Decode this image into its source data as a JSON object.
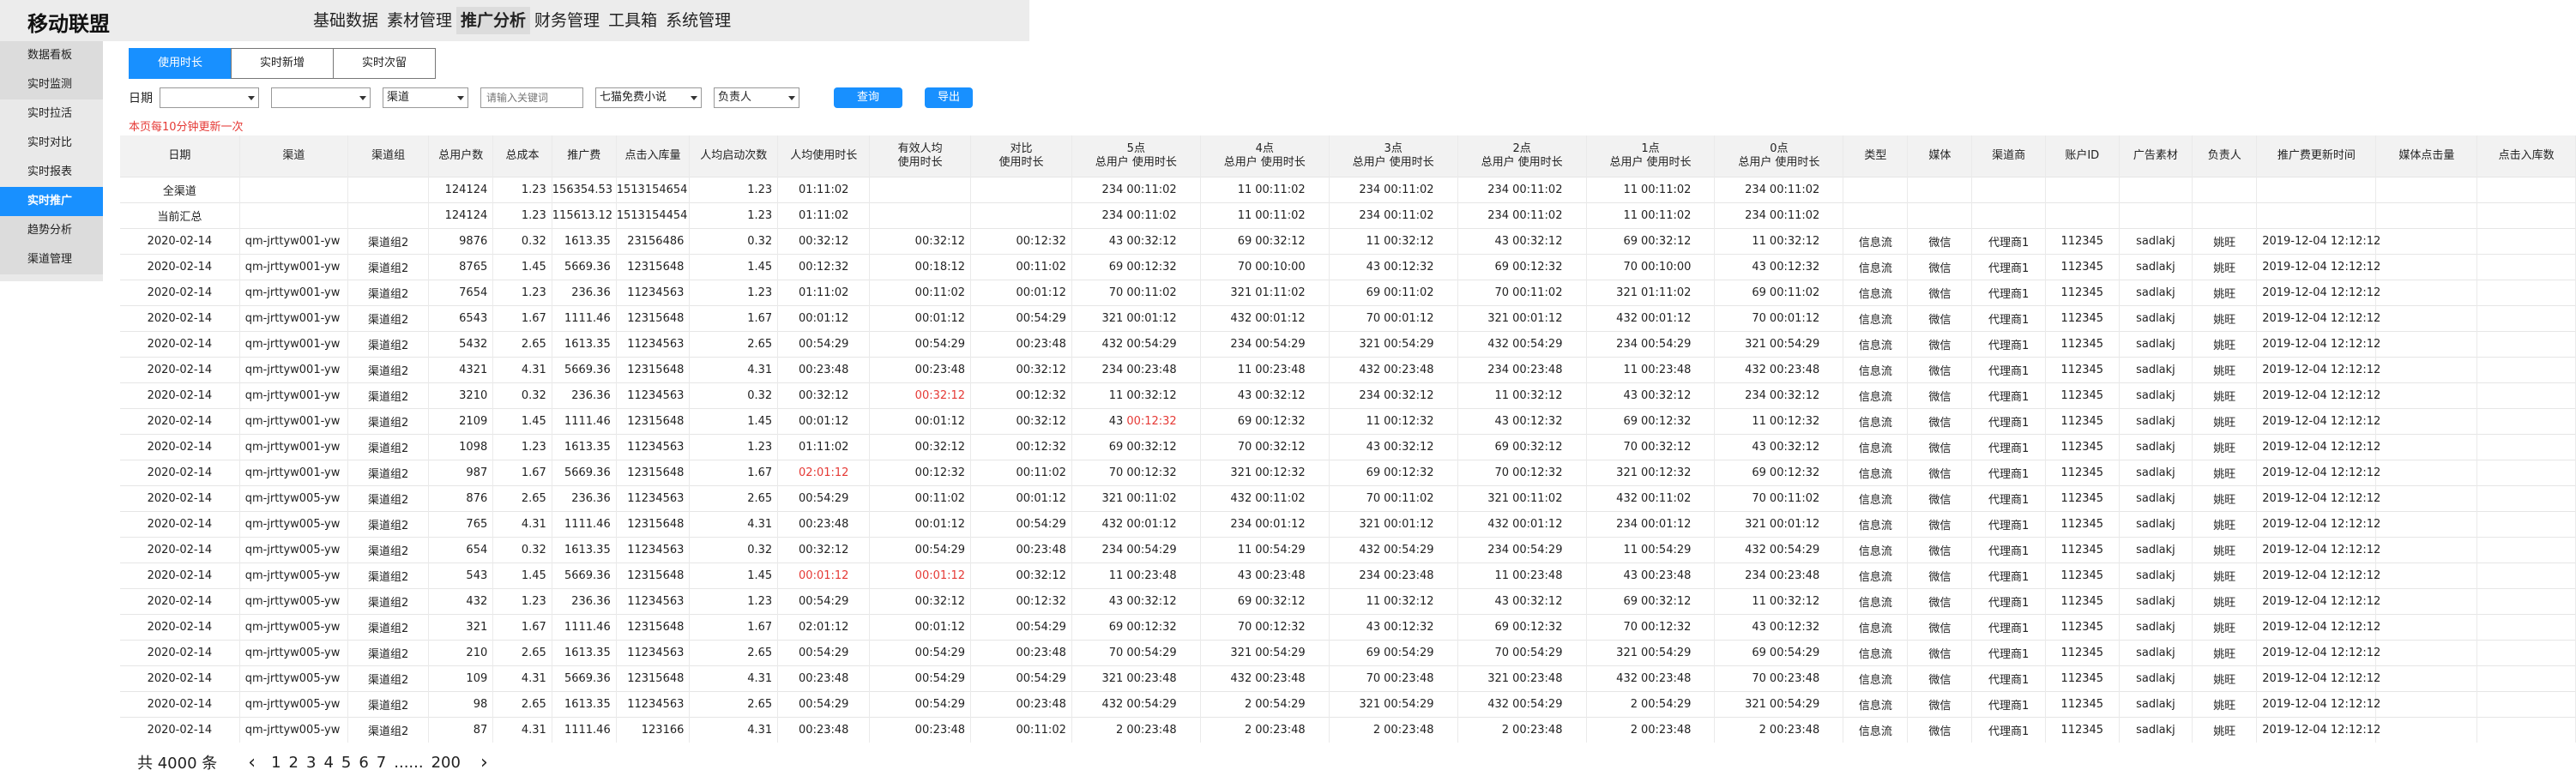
{
  "app": {
    "brand": "移动联盟",
    "nav": [
      "基础数据",
      "素材管理",
      "推广分析",
      "财务管理",
      "工具箱",
      "系统管理"
    ],
    "nav_active": 2
  },
  "sidebar": {
    "items": [
      "数据看板",
      "实时监测",
      "实时拉活",
      "实时对比",
      "实时报表",
      "实时推广",
      "趋势分析",
      "渠道管理"
    ],
    "active": 5
  },
  "tabs": [
    "使用时长",
    "实时新增",
    "实时次留"
  ],
  "tab_active": 0,
  "filters": {
    "date_label": "日期",
    "select1": "",
    "select2": "",
    "channel": "渠道",
    "keyword_placeholder": "请输入关键词",
    "app": "七猫免费小说",
    "owner": "负责人",
    "query": "查询",
    "export": "导出"
  },
  "notice": "本页每10分钟更新一次",
  "table": {
    "headers": [
      "日期",
      "渠道",
      "渠道组",
      "总用户数",
      "总成本",
      "推广费",
      "点击入库量",
      "人均启动次数",
      "人均使用时长",
      "有效人均\n使用时长",
      "对比\n使用时长",
      "5点",
      "4点",
      "3点",
      "2点",
      "1点",
      "0点",
      "类型",
      "媒体",
      "渠道商",
      "账户ID",
      "广告素材",
      "负责人",
      "推广费更新时间",
      "媒体点击量",
      "点击入库数"
    ],
    "hour_sub": [
      "总用户",
      "使用时长"
    ],
    "summary_rows": [
      [
        "全渠道",
        "",
        "",
        "124124",
        "1.23",
        "156354.53",
        "1513154654",
        "1.23",
        "01:11:02",
        "",
        "",
        [
          "234",
          "00:11:02"
        ],
        [
          "11",
          "00:11:02"
        ],
        [
          "234",
          "00:11:02"
        ],
        [
          "234",
          "00:11:02"
        ],
        [
          "11",
          "00:11:02"
        ],
        [
          "234",
          "00:11:02"
        ],
        "",
        "",
        "",
        "",
        "",
        "",
        "",
        "",
        ""
      ],
      [
        "当前汇总",
        "",
        "",
        "124124",
        "1.23",
        "115613.12",
        "1513154454",
        "1.23",
        "01:11:02",
        "",
        "",
        [
          "234",
          "00:11:02"
        ],
        [
          "11",
          "00:11:02"
        ],
        [
          "234",
          "00:11:02"
        ],
        [
          "234",
          "00:11:02"
        ],
        [
          "11",
          "00:11:02"
        ],
        [
          "234",
          "00:11:02"
        ],
        "",
        "",
        "",
        "",
        "",
        "",
        "",
        "",
        ""
      ]
    ],
    "rows": [
      [
        "2020-02-14",
        "qm-jrttyw001-yw",
        "渠道组2",
        "9876",
        "0.32",
        "1613.35",
        "23156486",
        "0.32",
        "00:32:12",
        "00:32:12",
        "00:12:32",
        [
          "43",
          "00:32:12"
        ],
        [
          "69",
          "00:32:12"
        ],
        [
          "11",
          "00:32:12"
        ],
        [
          "43",
          "00:32:12"
        ],
        [
          "69",
          "00:32:12"
        ],
        [
          "11",
          "00:32:12"
        ],
        "信息流",
        "微信",
        "代理商1",
        "112345",
        "sadlakj",
        "姚旺",
        "2019-12-04 12:12:12",
        "",
        ""
      ],
      [
        "2020-02-14",
        "qm-jrttyw001-yw",
        "渠道组2",
        "8765",
        "1.45",
        "5669.36",
        "12315648",
        "1.45",
        "00:12:32",
        "00:18:12",
        "00:11:02",
        [
          "69",
          "00:12:32"
        ],
        [
          "70",
          "00:10:00"
        ],
        [
          "43",
          "00:12:32"
        ],
        [
          "69",
          "00:12:32"
        ],
        [
          "70",
          "00:10:00"
        ],
        [
          "43",
          "00:12:32"
        ],
        "信息流",
        "微信",
        "代理商1",
        "112345",
        "sadlakj",
        "姚旺",
        "2019-12-04 12:12:12",
        "",
        ""
      ],
      [
        "2020-02-14",
        "qm-jrttyw001-yw",
        "渠道组2",
        "7654",
        "1.23",
        "236.36",
        "11234563",
        "1.23",
        "01:11:02",
        "00:11:02",
        "00:01:12",
        [
          "70",
          "00:11:02"
        ],
        [
          "321",
          "01:11:02"
        ],
        [
          "69",
          "00:11:02"
        ],
        [
          "70",
          "00:11:02"
        ],
        [
          "321",
          "01:11:02"
        ],
        [
          "69",
          "00:11:02"
        ],
        "信息流",
        "微信",
        "代理商1",
        "112345",
        "sadlakj",
        "姚旺",
        "2019-12-04 12:12:12",
        "",
        ""
      ],
      [
        "2020-02-14",
        "qm-jrttyw001-yw",
        "渠道组2",
        "6543",
        "1.67",
        "1111.46",
        "12315648",
        "1.67",
        "00:01:12",
        "00:01:12",
        "00:54:29",
        [
          "321",
          "00:01:12"
        ],
        [
          "432",
          "00:01:12"
        ],
        [
          "70",
          "00:01:12"
        ],
        [
          "321",
          "00:01:12"
        ],
        [
          "432",
          "00:01:12"
        ],
        [
          "70",
          "00:01:12"
        ],
        "信息流",
        "微信",
        "代理商1",
        "112345",
        "sadlakj",
        "姚旺",
        "2019-12-04 12:12:12",
        "",
        ""
      ],
      [
        "2020-02-14",
        "qm-jrttyw001-yw",
        "渠道组2",
        "5432",
        "2.65",
        "1613.35",
        "11234563",
        "2.65",
        "00:54:29",
        "00:54:29",
        "00:23:48",
        [
          "432",
          "00:54:29"
        ],
        [
          "234",
          "00:54:29"
        ],
        [
          "321",
          "00:54:29"
        ],
        [
          "432",
          "00:54:29"
        ],
        [
          "234",
          "00:54:29"
        ],
        [
          "321",
          "00:54:29"
        ],
        "信息流",
        "微信",
        "代理商1",
        "112345",
        "sadlakj",
        "姚旺",
        "2019-12-04 12:12:12",
        "",
        ""
      ],
      [
        "2020-02-14",
        "qm-jrttyw001-yw",
        "渠道组2",
        "4321",
        "4.31",
        "5669.36",
        "12315648",
        "4.31",
        "00:23:48",
        "00:23:48",
        "00:32:12",
        [
          "234",
          "00:23:48"
        ],
        [
          "11",
          "00:23:48"
        ],
        [
          "432",
          "00:23:48"
        ],
        [
          "234",
          "00:23:48"
        ],
        [
          "11",
          "00:23:48"
        ],
        [
          "432",
          "00:23:48"
        ],
        "信息流",
        "微信",
        "代理商1",
        "112345",
        "sadlakj",
        "姚旺",
        "2019-12-04 12:12:12",
        "",
        ""
      ],
      [
        "2020-02-14",
        "qm-jrttyw001-yw",
        "渠道组2",
        "3210",
        "0.32",
        "236.36",
        "11234563",
        "0.32",
        "00:32:12",
        "00:32:12",
        "00:12:32",
        [
          "11",
          "00:32:12"
        ],
        [
          "43",
          "00:32:12"
        ],
        [
          "234",
          "00:32:12"
        ],
        [
          "11",
          "00:32:12"
        ],
        [
          "43",
          "00:32:12"
        ],
        [
          "234",
          "00:32:12"
        ],
        "信息流",
        "微信",
        "代理商1",
        "112345",
        "sadlakj",
        "姚旺",
        "2019-12-04 12:12:12",
        "",
        ""
      ],
      [
        "2020-02-14",
        "qm-jrttyw001-yw",
        "渠道组2",
        "2109",
        "1.45",
        "1111.46",
        "12315648",
        "1.45",
        "00:01:12",
        "00:01:12",
        "00:32:12",
        [
          "43",
          "00:12:32"
        ],
        [
          "69",
          "00:12:32"
        ],
        [
          "11",
          "00:12:32"
        ],
        [
          "43",
          "00:12:32"
        ],
        [
          "69",
          "00:12:32"
        ],
        [
          "11",
          "00:12:32"
        ],
        "信息流",
        "微信",
        "代理商1",
        "112345",
        "sadlakj",
        "姚旺",
        "2019-12-04 12:12:12",
        "",
        ""
      ],
      [
        "2020-02-14",
        "qm-jrttyw001-yw",
        "渠道组2",
        "1098",
        "1.23",
        "1613.35",
        "11234563",
        "1.23",
        "01:11:02",
        "00:32:12",
        "00:12:32",
        [
          "69",
          "00:32:12"
        ],
        [
          "70",
          "00:32:12"
        ],
        [
          "43",
          "00:32:12"
        ],
        [
          "69",
          "00:32:12"
        ],
        [
          "70",
          "00:32:12"
        ],
        [
          "43",
          "00:32:12"
        ],
        "信息流",
        "微信",
        "代理商1",
        "112345",
        "sadlakj",
        "姚旺",
        "2019-12-04 12:12:12",
        "",
        ""
      ],
      [
        "2020-02-14",
        "qm-jrttyw001-yw",
        "渠道组2",
        "987",
        "1.67",
        "5669.36",
        "12315648",
        "1.67",
        "02:01:12",
        "00:12:32",
        "00:11:02",
        [
          "70",
          "00:12:32"
        ],
        [
          "321",
          "00:12:32"
        ],
        [
          "69",
          "00:12:32"
        ],
        [
          "70",
          "00:12:32"
        ],
        [
          "321",
          "00:12:32"
        ],
        [
          "69",
          "00:12:32"
        ],
        "信息流",
        "微信",
        "代理商1",
        "112345",
        "sadlakj",
        "姚旺",
        "2019-12-04 12:12:12",
        "",
        ""
      ],
      [
        "2020-02-14",
        "qm-jrttyw005-yw",
        "渠道组2",
        "876",
        "2.65",
        "236.36",
        "11234563",
        "2.65",
        "00:54:29",
        "00:11:02",
        "00:01:12",
        [
          "321",
          "00:11:02"
        ],
        [
          "432",
          "00:11:02"
        ],
        [
          "70",
          "00:11:02"
        ],
        [
          "321",
          "00:11:02"
        ],
        [
          "432",
          "00:11:02"
        ],
        [
          "70",
          "00:11:02"
        ],
        "信息流",
        "微信",
        "代理商1",
        "112345",
        "sadlakj",
        "姚旺",
        "2019-12-04 12:12:12",
        "",
        ""
      ],
      [
        "2020-02-14",
        "qm-jrttyw005-yw",
        "渠道组2",
        "765",
        "4.31",
        "1111.46",
        "12315648",
        "4.31",
        "00:23:48",
        "00:01:12",
        "00:54:29",
        [
          "432",
          "00:01:12"
        ],
        [
          "234",
          "00:01:12"
        ],
        [
          "321",
          "00:01:12"
        ],
        [
          "432",
          "00:01:12"
        ],
        [
          "234",
          "00:01:12"
        ],
        [
          "321",
          "00:01:12"
        ],
        "信息流",
        "微信",
        "代理商1",
        "112345",
        "sadlakj",
        "姚旺",
        "2019-12-04 12:12:12",
        "",
        ""
      ],
      [
        "2020-02-14",
        "qm-jrttyw005-yw",
        "渠道组2",
        "654",
        "0.32",
        "1613.35",
        "11234563",
        "0.32",
        "00:32:12",
        "00:54:29",
        "00:23:48",
        [
          "234",
          "00:54:29"
        ],
        [
          "11",
          "00:54:29"
        ],
        [
          "432",
          "00:54:29"
        ],
        [
          "234",
          "00:54:29"
        ],
        [
          "11",
          "00:54:29"
        ],
        [
          "432",
          "00:54:29"
        ],
        "信息流",
        "微信",
        "代理商1",
        "112345",
        "sadlakj",
        "姚旺",
        "2019-12-04 12:12:12",
        "",
        ""
      ],
      [
        "2020-02-14",
        "qm-jrttyw005-yw",
        "渠道组2",
        "543",
        "1.45",
        "5669.36",
        "12315648",
        "1.45",
        "00:01:12",
        "00:01:12",
        "00:32:12",
        [
          "11",
          "00:23:48"
        ],
        [
          "43",
          "00:23:48"
        ],
        [
          "234",
          "00:23:48"
        ],
        [
          "11",
          "00:23:48"
        ],
        [
          "43",
          "00:23:48"
        ],
        [
          "234",
          "00:23:48"
        ],
        "信息流",
        "微信",
        "代理商1",
        "112345",
        "sadlakj",
        "姚旺",
        "2019-12-04 12:12:12",
        "",
        ""
      ],
      [
        "2020-02-14",
        "qm-jrttyw005-yw",
        "渠道组2",
        "432",
        "1.23",
        "236.36",
        "11234563",
        "1.23",
        "00:54:29",
        "00:32:12",
        "00:12:32",
        [
          "43",
          "00:32:12"
        ],
        [
          "69",
          "00:32:12"
        ],
        [
          "11",
          "00:32:12"
        ],
        [
          "43",
          "00:32:12"
        ],
        [
          "69",
          "00:32:12"
        ],
        [
          "11",
          "00:32:12"
        ],
        "信息流",
        "微信",
        "代理商1",
        "112345",
        "sadlakj",
        "姚旺",
        "2019-12-04 12:12:12",
        "",
        ""
      ],
      [
        "2020-02-14",
        "qm-jrttyw005-yw",
        "渠道组2",
        "321",
        "1.67",
        "1111.46",
        "12315648",
        "1.67",
        "02:01:12",
        "00:01:12",
        "00:54:29",
        [
          "69",
          "00:12:32"
        ],
        [
          "70",
          "00:12:32"
        ],
        [
          "43",
          "00:12:32"
        ],
        [
          "69",
          "00:12:32"
        ],
        [
          "70",
          "00:12:32"
        ],
        [
          "43",
          "00:12:32"
        ],
        "信息流",
        "微信",
        "代理商1",
        "112345",
        "sadlakj",
        "姚旺",
        "2019-12-04 12:12:12",
        "",
        ""
      ],
      [
        "2020-02-14",
        "qm-jrttyw005-yw",
        "渠道组2",
        "210",
        "2.65",
        "1613.35",
        "11234563",
        "2.65",
        "00:54:29",
        "00:54:29",
        "00:23:48",
        [
          "70",
          "00:54:29"
        ],
        [
          "321",
          "00:54:29"
        ],
        [
          "69",
          "00:54:29"
        ],
        [
          "70",
          "00:54:29"
        ],
        [
          "321",
          "00:54:29"
        ],
        [
          "69",
          "00:54:29"
        ],
        "信息流",
        "微信",
        "代理商1",
        "112345",
        "sadlakj",
        "姚旺",
        "2019-12-04 12:12:12",
        "",
        ""
      ],
      [
        "2020-02-14",
        "qm-jrttyw005-yw",
        "渠道组2",
        "109",
        "4.31",
        "5669.36",
        "12315648",
        "4.31",
        "00:23:48",
        "00:54:29",
        "00:54:29",
        [
          "321",
          "00:23:48"
        ],
        [
          "432",
          "00:23:48"
        ],
        [
          "70",
          "00:23:48"
        ],
        [
          "321",
          "00:23:48"
        ],
        [
          "432",
          "00:23:48"
        ],
        [
          "70",
          "00:23:48"
        ],
        "信息流",
        "微信",
        "代理商1",
        "112345",
        "sadlakj",
        "姚旺",
        "2019-12-04 12:12:12",
        "",
        ""
      ],
      [
        "2020-02-14",
        "qm-jrttyw005-yw",
        "渠道组2",
        "98",
        "2.65",
        "1613.35",
        "11234563",
        "2.65",
        "00:54:29",
        "00:54:29",
        "00:23:48",
        [
          "432",
          "00:54:29"
        ],
        [
          "2",
          "00:54:29"
        ],
        [
          "321",
          "00:54:29"
        ],
        [
          "432",
          "00:54:29"
        ],
        [
          "2",
          "00:54:29"
        ],
        [
          "321",
          "00:54:29"
        ],
        "信息流",
        "微信",
        "代理商1",
        "112345",
        "sadlakj",
        "姚旺",
        "2019-12-04 12:12:12",
        "",
        ""
      ],
      [
        "2020-02-14",
        "qm-jrttyw005-yw",
        "渠道组2",
        "87",
        "4.31",
        "1111.46",
        "123166",
        "4.31",
        "00:23:48",
        "00:23:48",
        "00:11:02",
        [
          "2",
          "00:23:48"
        ],
        [
          "2",
          "00:23:48"
        ],
        [
          "2",
          "00:23:48"
        ],
        [
          "2",
          "00:23:48"
        ],
        [
          "2",
          "00:23:48"
        ],
        [
          "2",
          "00:23:48"
        ],
        "信息流",
        "微信",
        "代理商1",
        "112345",
        "sadlakj",
        "姚旺",
        "2019-12-04 12:12:12",
        "",
        ""
      ]
    ],
    "highlight_color": "#e53935",
    "highlights": [
      {
        "row": 6,
        "col": 9
      },
      {
        "row": 7,
        "col": 11,
        "sub": 1
      },
      {
        "row": 9,
        "col": 8
      },
      {
        "row": 13,
        "col": 8
      },
      {
        "row": 13,
        "col": 9
      }
    ]
  },
  "pagination": {
    "total": "共 4000 条",
    "prev": "<",
    "pages": [
      "1",
      "2",
      "3",
      "4",
      "5",
      "6",
      "7",
      "......",
      "200"
    ],
    "next": ">"
  },
  "colors": {
    "accent": "#1890ff",
    "sidebar_bg": "#e9e9e9",
    "topbar_bg": "#ececec",
    "warning": "#e53935"
  }
}
